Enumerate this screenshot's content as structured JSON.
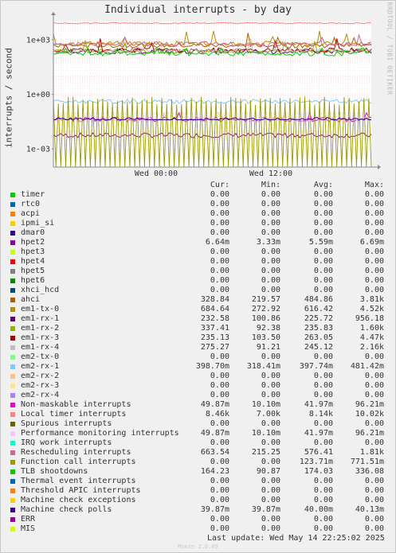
{
  "title": "Individual interrupts - by day",
  "watermark": "RRDTOOL / TOBI OETIKER",
  "footer": {
    "last_update": "Last update: Wed May 14 22:25:02 2025",
    "munin": "Munin 2.0.69"
  },
  "legend_headers": {
    "cur": "Cur:",
    "min": "Min:",
    "avg": "Avg:",
    "max": "Max:"
  },
  "chart_data": {
    "type": "line",
    "title": "Individual interrupts - by day",
    "xlabel": "",
    "ylabel": "interrupts / second",
    "y_scale": "log",
    "ylim": [
      0.0001,
      10000
    ],
    "y_ticks": [
      {
        "value": 0.001,
        "label": "1e-03"
      },
      {
        "value": 1,
        "label": "1e+00"
      },
      {
        "value": 1000,
        "label": "1e+03"
      }
    ],
    "x_ticks": [
      "Wed 00:00",
      "Wed 12:00"
    ],
    "grid": true,
    "legend_position": "bottom",
    "series": [
      {
        "name": "timer",
        "color": "#00cc00",
        "cur": "0.00",
        "min": "0.00",
        "avg": "0.00",
        "max": "0.00"
      },
      {
        "name": "rtc0",
        "color": "#0066b3",
        "cur": "0.00",
        "min": "0.00",
        "avg": "0.00",
        "max": "0.00"
      },
      {
        "name": "acpi",
        "color": "#ff8000",
        "cur": "0.00",
        "min": "0.00",
        "avg": "0.00",
        "max": "0.00"
      },
      {
        "name": "ipmi_si",
        "color": "#ffcc00",
        "cur": "0.00",
        "min": "0.00",
        "avg": "0.00",
        "max": "0.00"
      },
      {
        "name": "dmar0",
        "color": "#330099",
        "cur": "0.00",
        "min": "0.00",
        "avg": "0.00",
        "max": "0.00"
      },
      {
        "name": "hpet2",
        "color": "#990099",
        "cur": "6.64m",
        "min": "3.33m",
        "avg": "5.59m",
        "max": "6.69m"
      },
      {
        "name": "hpet3",
        "color": "#ccff00",
        "cur": "0.00",
        "min": "0.00",
        "avg": "0.00",
        "max": "0.00"
      },
      {
        "name": "hpet4",
        "color": "#ff0000",
        "cur": "0.00",
        "min": "0.00",
        "avg": "0.00",
        "max": "0.00"
      },
      {
        "name": "hpet5",
        "color": "#808080",
        "cur": "0.00",
        "min": "0.00",
        "avg": "0.00",
        "max": "0.00"
      },
      {
        "name": "hpet6",
        "color": "#008f00",
        "cur": "0.00",
        "min": "0.00",
        "avg": "0.00",
        "max": "0.00"
      },
      {
        "name": "xhci_hcd",
        "color": "#00487d",
        "cur": "0.00",
        "min": "0.00",
        "avg": "0.00",
        "max": "0.00"
      },
      {
        "name": "ahci",
        "color": "#b35a00",
        "cur": "328.84",
        "min": "219.57",
        "avg": "484.86",
        "max": "3.81k"
      },
      {
        "name": "em1-tx-0",
        "color": "#b38f00",
        "cur": "684.64",
        "min": "272.92",
        "avg": "616.42",
        "max": "4.52k"
      },
      {
        "name": "em1-rx-1",
        "color": "#6b006b",
        "cur": "232.58",
        "min": "100.86",
        "avg": "225.72",
        "max": "956.18"
      },
      {
        "name": "em1-rx-2",
        "color": "#8fb300",
        "cur": "337.41",
        "min": "92.38",
        "avg": "235.83",
        "max": "1.60k"
      },
      {
        "name": "em1-rx-3",
        "color": "#b30000",
        "cur": "235.13",
        "min": "103.50",
        "avg": "263.05",
        "max": "4.47k"
      },
      {
        "name": "em1-rx-4",
        "color": "#bebebe",
        "cur": "275.27",
        "min": "91.21",
        "avg": "245.12",
        "max": "2.16k"
      },
      {
        "name": "em2-tx-0",
        "color": "#80ff80",
        "cur": "0.00",
        "min": "0.00",
        "avg": "0.00",
        "max": "0.00"
      },
      {
        "name": "em2-rx-1",
        "color": "#80c9ff",
        "cur": "398.70m",
        "min": "318.41m",
        "avg": "397.74m",
        "max": "481.42m"
      },
      {
        "name": "em2-rx-2",
        "color": "#ffc080",
        "cur": "0.00",
        "min": "0.00",
        "avg": "0.00",
        "max": "0.00"
      },
      {
        "name": "em2-rx-3",
        "color": "#ffe680",
        "cur": "0.00",
        "min": "0.00",
        "avg": "0.00",
        "max": "0.00"
      },
      {
        "name": "em2-rx-4",
        "color": "#aa80ff",
        "cur": "0.00",
        "min": "0.00",
        "avg": "0.00",
        "max": "0.00"
      },
      {
        "name": "Non-maskable interrupts",
        "color": "#ee00cc",
        "cur": "49.87m",
        "min": "10.10m",
        "avg": "41.97m",
        "max": "96.21m"
      },
      {
        "name": "Local timer interrupts",
        "color": "#ff8080",
        "cur": "8.46k",
        "min": "7.00k",
        "avg": "8.14k",
        "max": "10.02k"
      },
      {
        "name": "Spurious interrupts",
        "color": "#666600",
        "cur": "0.00",
        "min": "0.00",
        "avg": "0.00",
        "max": "0.00"
      },
      {
        "name": "Performance monitoring interrupts",
        "color": "#ffbfff",
        "cur": "49.87m",
        "min": "10.10m",
        "avg": "41.97m",
        "max": "96.21m"
      },
      {
        "name": "IRQ work interrupts",
        "color": "#00ffcc",
        "cur": "0.00",
        "min": "0.00",
        "avg": "0.00",
        "max": "0.00"
      },
      {
        "name": "Rescheduling interrupts",
        "color": "#cc6699",
        "cur": "663.54",
        "min": "215.25",
        "avg": "576.41",
        "max": "1.81k"
      },
      {
        "name": "Function call interrupts",
        "color": "#999900",
        "cur": "0.00",
        "min": "0.00",
        "avg": "123.71m",
        "max": "771.51m"
      },
      {
        "name": "TLB shootdowns",
        "color": "#00cc00",
        "cur": "164.23",
        "min": "90.87",
        "avg": "174.03",
        "max": "336.08"
      },
      {
        "name": "Thermal event interrupts",
        "color": "#0066b3",
        "cur": "0.00",
        "min": "0.00",
        "avg": "0.00",
        "max": "0.00"
      },
      {
        "name": "Threshold APIC interrupts",
        "color": "#ff8000",
        "cur": "0.00",
        "min": "0.00",
        "avg": "0.00",
        "max": "0.00"
      },
      {
        "name": "Machine check exceptions",
        "color": "#ffcc00",
        "cur": "0.00",
        "min": "0.00",
        "avg": "0.00",
        "max": "0.00"
      },
      {
        "name": "Machine check polls",
        "color": "#330099",
        "cur": "39.87m",
        "min": "39.87m",
        "avg": "40.00m",
        "max": "40.13m"
      },
      {
        "name": "ERR",
        "color": "#990099",
        "cur": "0.00",
        "min": "0.00",
        "avg": "0.00",
        "max": "0.00"
      },
      {
        "name": "MIS",
        "color": "#ccff00",
        "cur": "0.00",
        "min": "0.00",
        "avg": "0.00",
        "max": "0.00"
      }
    ]
  }
}
